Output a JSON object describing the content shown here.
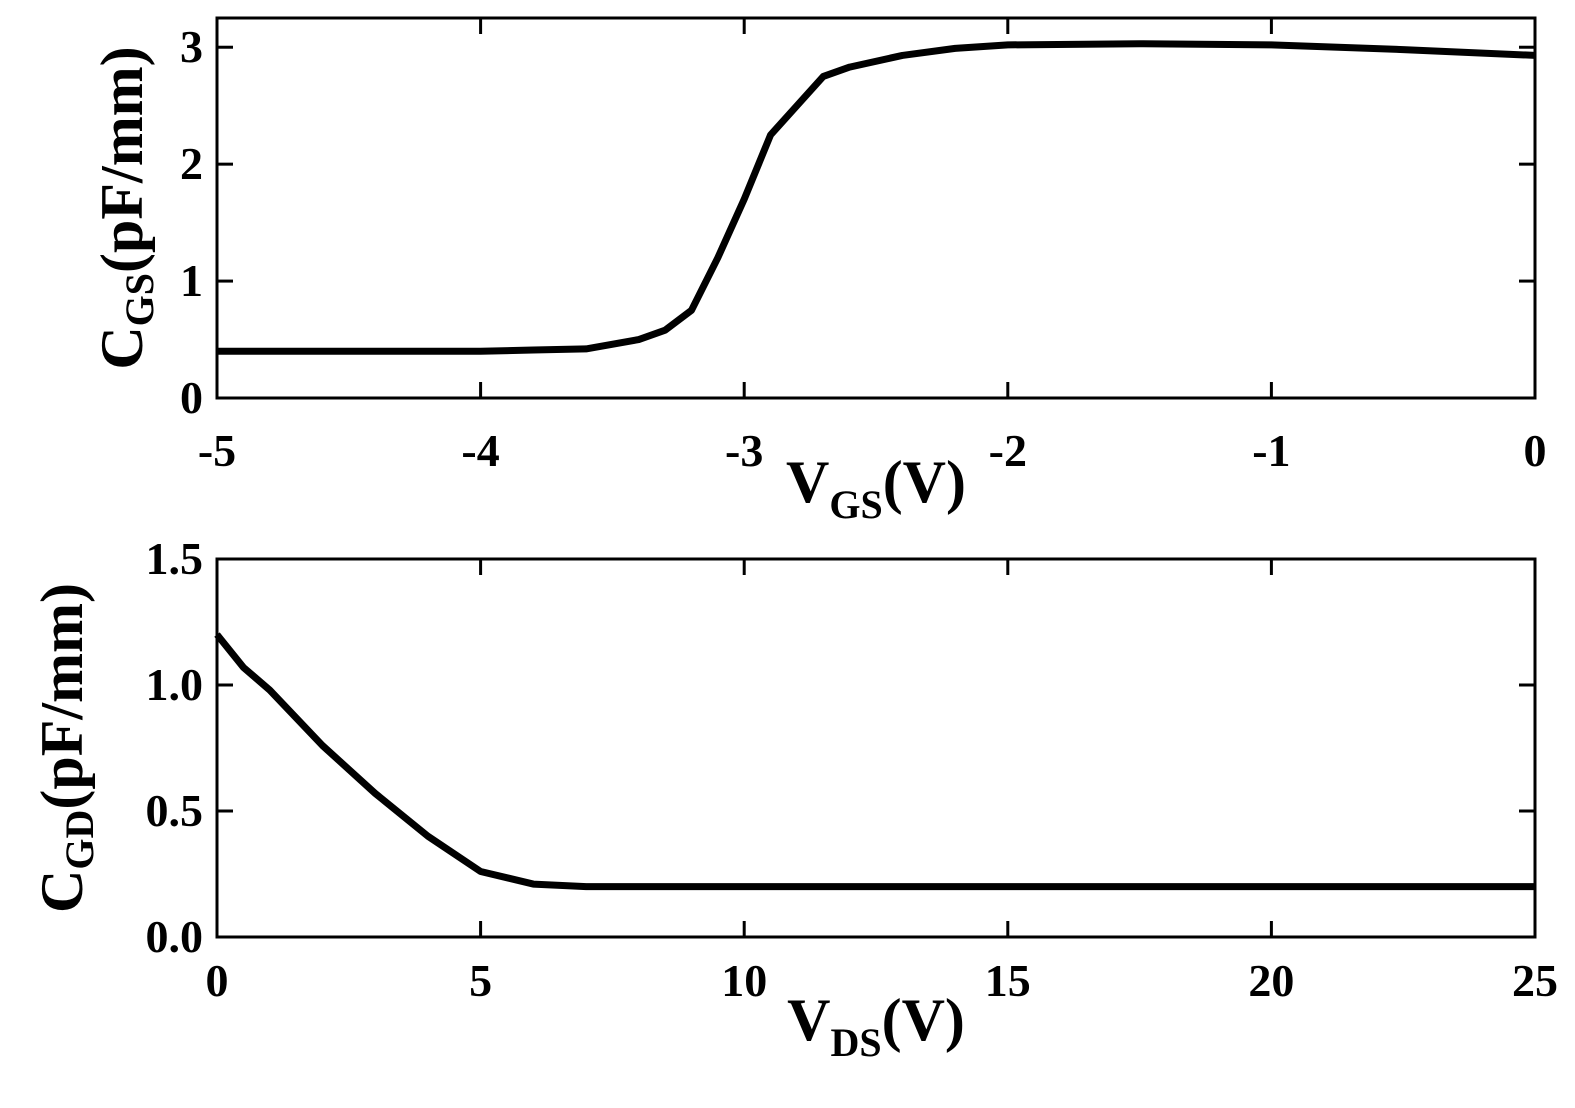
{
  "chart_data": [
    {
      "type": "line",
      "color": "#000000",
      "xlabel": [
        "V",
        "GS",
        "(V)"
      ],
      "ylabel": [
        "C",
        "GS",
        "(pF/mm)"
      ],
      "x": [
        -5,
        -4.5,
        -4,
        -3.8,
        -3.6,
        -3.4,
        -3.3,
        -3.2,
        -3.1,
        -3.0,
        -2.9,
        -2.8,
        -2.7,
        -2.6,
        -2.4,
        -2.2,
        -2.0,
        -1.5,
        -1.0,
        -0.5,
        0
      ],
      "values": [
        0.4,
        0.4,
        0.4,
        0.41,
        0.42,
        0.5,
        0.58,
        0.75,
        1.2,
        1.7,
        2.25,
        2.5,
        2.75,
        2.83,
        2.93,
        2.99,
        3.02,
        3.03,
        3.02,
        2.98,
        2.93
      ],
      "xlim": [
        -5,
        0
      ],
      "xticks": [
        -5,
        -4,
        -3,
        -2,
        -1,
        0
      ],
      "ylim": [
        0,
        3.25
      ],
      "yticks": [
        0,
        1,
        2,
        3
      ]
    },
    {
      "type": "line",
      "color": "#000000",
      "xlabel": [
        "V",
        "DS",
        "(V)"
      ],
      "ylabel": [
        "C",
        "GD",
        "(pF/mm)"
      ],
      "x": [
        0,
        0.5,
        1,
        2,
        3,
        4,
        5,
        6,
        7,
        10,
        15,
        20,
        25
      ],
      "values": [
        1.2,
        1.07,
        0.98,
        0.76,
        0.57,
        0.4,
        0.26,
        0.21,
        0.2,
        0.2,
        0.2,
        0.2,
        0.2
      ],
      "xlim": [
        0,
        25
      ],
      "xticks": [
        0,
        5,
        10,
        15,
        20,
        25
      ],
      "ylim": [
        0,
        1.5
      ],
      "yticks": [
        {
          "value": 0,
          "label": "0.0"
        },
        0.5,
        {
          "value": 1,
          "label": "1.0"
        },
        1.5
      ]
    }
  ]
}
